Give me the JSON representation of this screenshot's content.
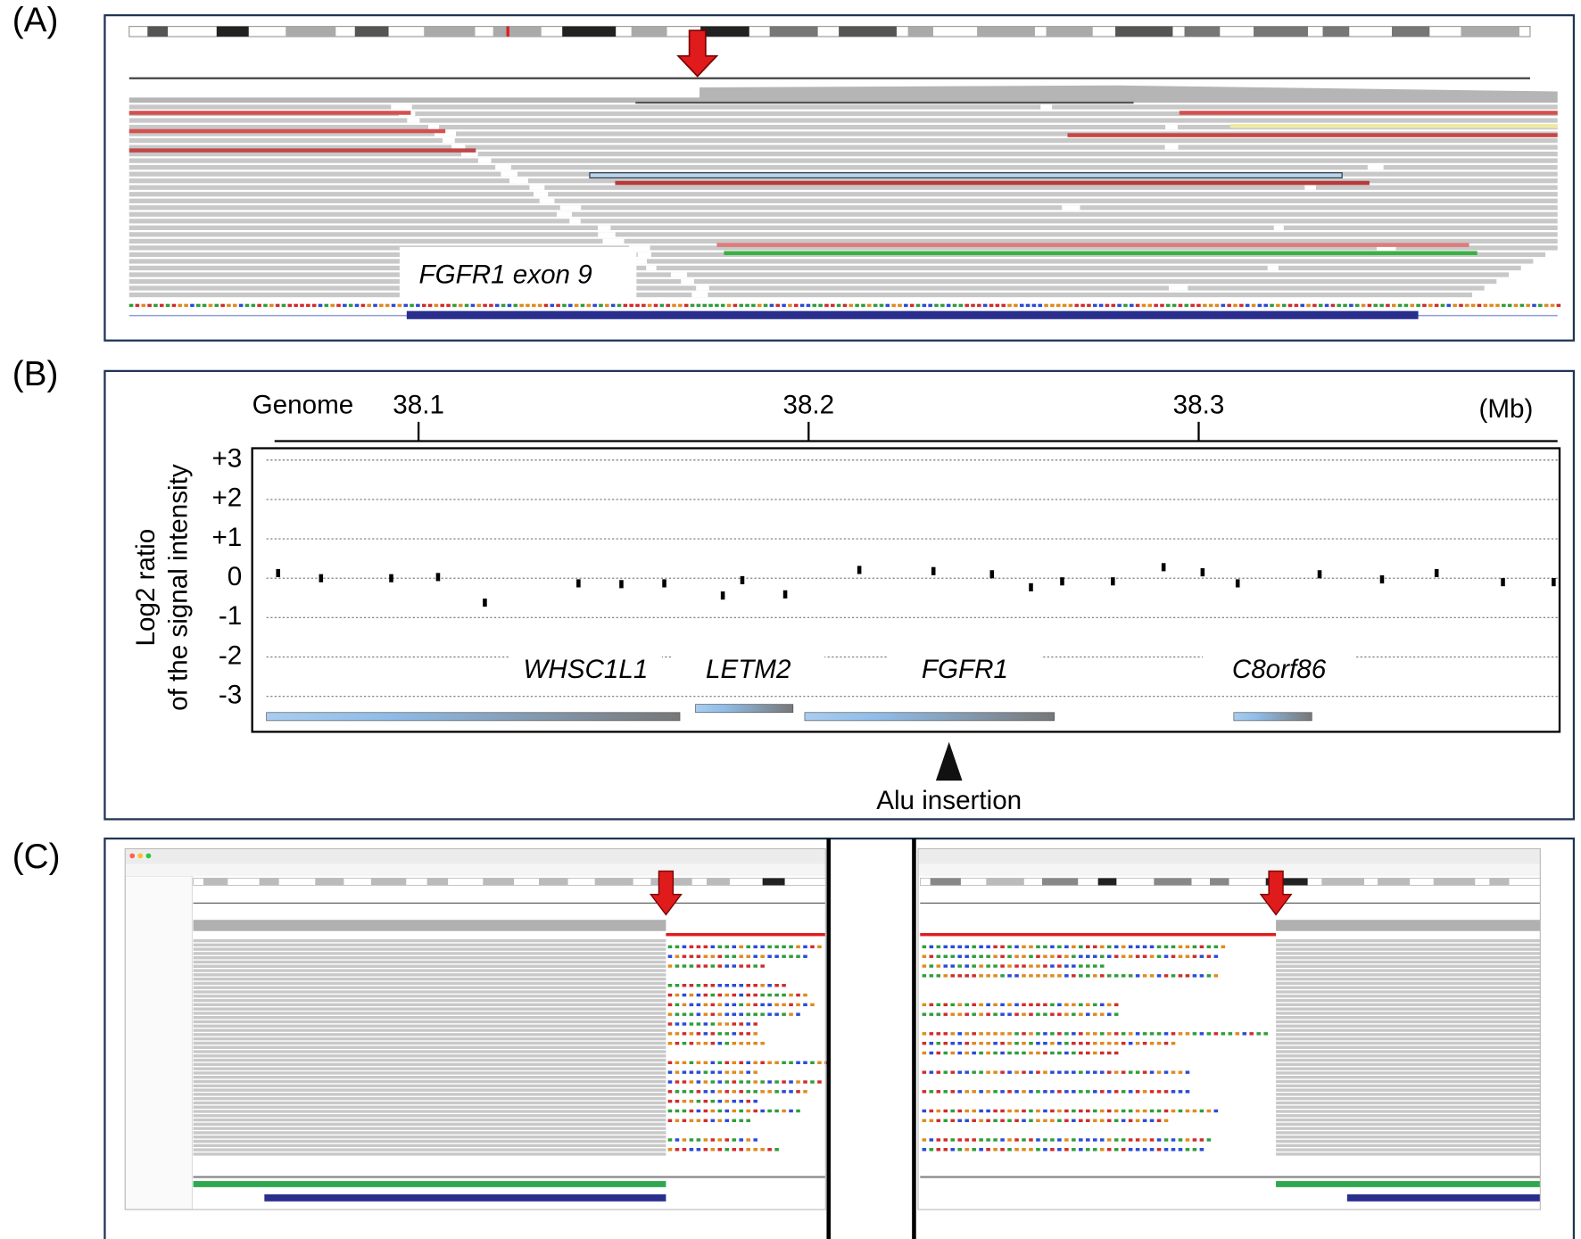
{
  "panel_labels": [
    "(A)",
    "(B)",
    "(C)"
  ],
  "panel_a": {
    "exon_label": "FGFR1 exon 9"
  },
  "chart_data": {
    "type": "scatter",
    "x_axis_label": "Genome",
    "x_unit": "(Mb)",
    "y_axis_label": [
      "Log2 ratio",
      "of the signal intensity"
    ],
    "x": [
      38.064,
      38.075,
      38.093,
      38.105,
      38.117,
      38.141,
      38.152,
      38.163,
      38.178,
      38.183,
      38.194,
      38.213,
      38.232,
      38.247,
      38.257,
      38.265,
      38.278,
      38.291,
      38.301,
      38.31,
      38.331,
      38.347,
      38.361,
      38.378,
      38.391
    ],
    "values": [
      0.13,
      0.0,
      0.0,
      0.03,
      -0.62,
      -0.13,
      -0.15,
      -0.13,
      -0.44,
      -0.05,
      -0.41,
      0.21,
      0.18,
      0.1,
      -0.23,
      -0.08,
      -0.08,
      0.28,
      0.15,
      -0.13,
      0.1,
      -0.03,
      0.13,
      -0.1,
      -0.1
    ],
    "color": "#000000",
    "xlim": [
      38.061,
      38.392
    ],
    "xticks": [
      38.1,
      38.2,
      38.3
    ],
    "ylim": [
      -3.9,
      3.3
    ],
    "yticks": [
      {
        "value": 3,
        "label": "+3"
      },
      {
        "value": 2,
        "label": "+2"
      },
      {
        "value": 1,
        "label": "+1"
      },
      0,
      -1,
      -2,
      -3
    ],
    "grid": true,
    "genes": [
      {
        "name": "WHSC1L1",
        "start": 38.061,
        "end": 38.167
      },
      {
        "name": "LETM2",
        "start": 38.171,
        "end": 38.196
      },
      {
        "name": "FGFR1",
        "start": 38.199,
        "end": 38.263
      },
      {
        "name": "C8orf86",
        "start": 38.309,
        "end": 38.329
      }
    ],
    "annotation": {
      "text": "Alu insertion",
      "x": 38.236
    }
  }
}
